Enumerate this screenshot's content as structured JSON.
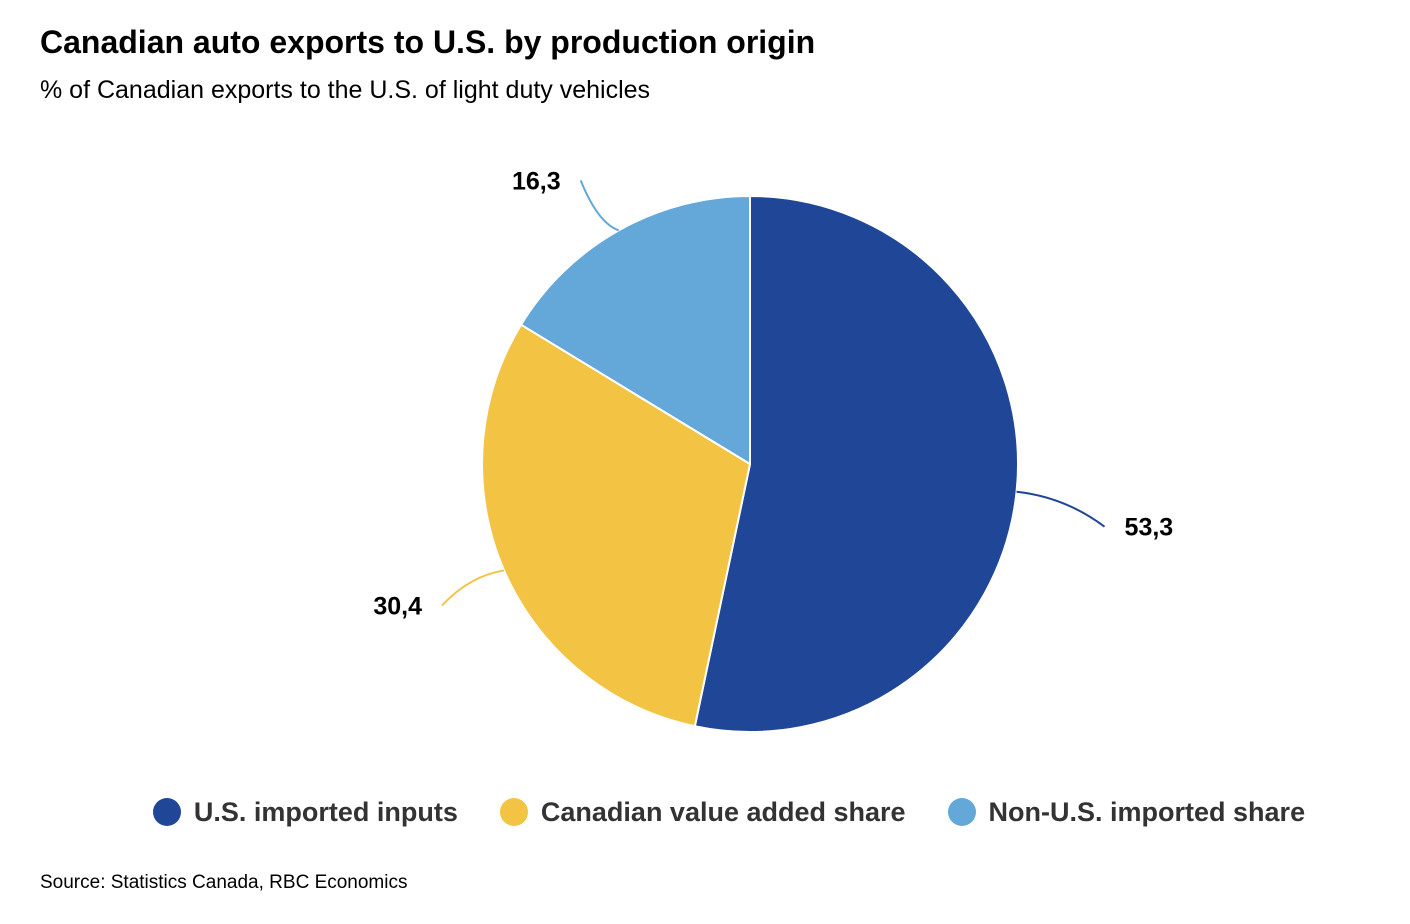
{
  "chart_data": {
    "type": "pie",
    "title": "Canadian auto exports to U.S. by production origin",
    "subtitle": "% of Canadian exports to the U.S. of light duty vehicles",
    "source": "Source: Statistics Canada, RBC Economics",
    "legend_position": "bottom",
    "slices": [
      {
        "name": "U.S. imported inputs",
        "value": 53.3,
        "label": "53,3",
        "color": "#204697"
      },
      {
        "name": "Canadian value added share",
        "value": 30.4,
        "label": "30,4",
        "color": "#F3C343"
      },
      {
        "name": "Non-U.S. imported share",
        "value": 16.3,
        "label": "16,3",
        "color": "#63A8D8"
      }
    ]
  }
}
